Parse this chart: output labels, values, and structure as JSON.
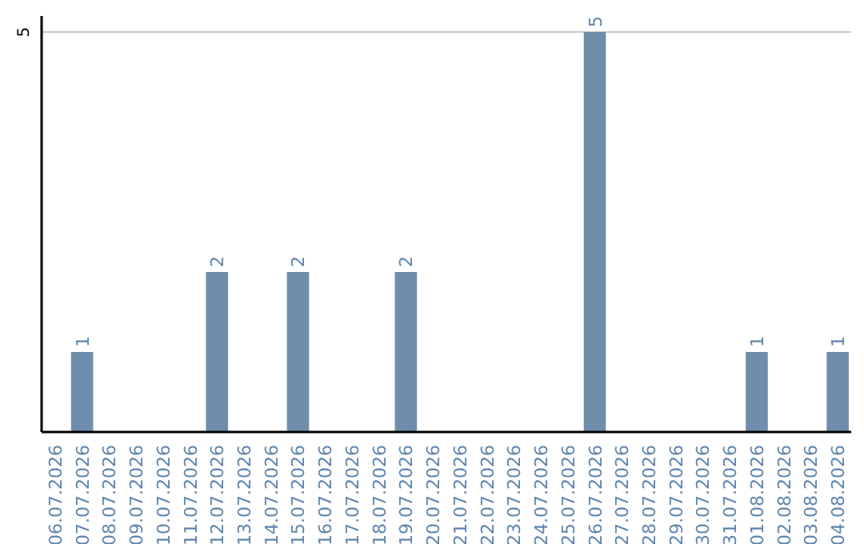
{
  "chart_data": {
    "type": "bar",
    "categories": [
      "06.07.2026",
      "07.07.2026",
      "08.07.2026",
      "09.07.2026",
      "10.07.2026",
      "11.07.2026",
      "12.07.2026",
      "13.07.2026",
      "14.07.2026",
      "15.07.2026",
      "16.07.2026",
      "17.07.2026",
      "18.07.2026",
      "19.07.2026",
      "20.07.2026",
      "21.07.2026",
      "22.07.2026",
      "23.07.2026",
      "24.07.2026",
      "25.07.2026",
      "26.07.2026",
      "27.07.2026",
      "28.07.2026",
      "29.07.2026",
      "30.07.2026",
      "31.07.2026",
      "01.08.2026",
      "02.08.2026",
      "03.08.2026",
      "04.08.2026"
    ],
    "values": [
      0,
      1,
      0,
      0,
      0,
      0,
      2,
      0,
      0,
      2,
      0,
      0,
      0,
      2,
      0,
      0,
      0,
      0,
      0,
      0,
      5,
      0,
      0,
      0,
      0,
      0,
      1,
      0,
      0,
      1
    ],
    "value_labels": [
      null,
      "1",
      null,
      null,
      null,
      null,
      "2",
      null,
      null,
      "2",
      null,
      null,
      null,
      "2",
      null,
      null,
      null,
      null,
      null,
      null,
      "5",
      null,
      null,
      null,
      null,
      null,
      "1",
      null,
      null,
      "1"
    ],
    "color": "#6e8eab",
    "ylim": [
      0,
      5.2
    ],
    "yticks": [
      5
    ],
    "grid": "y"
  }
}
